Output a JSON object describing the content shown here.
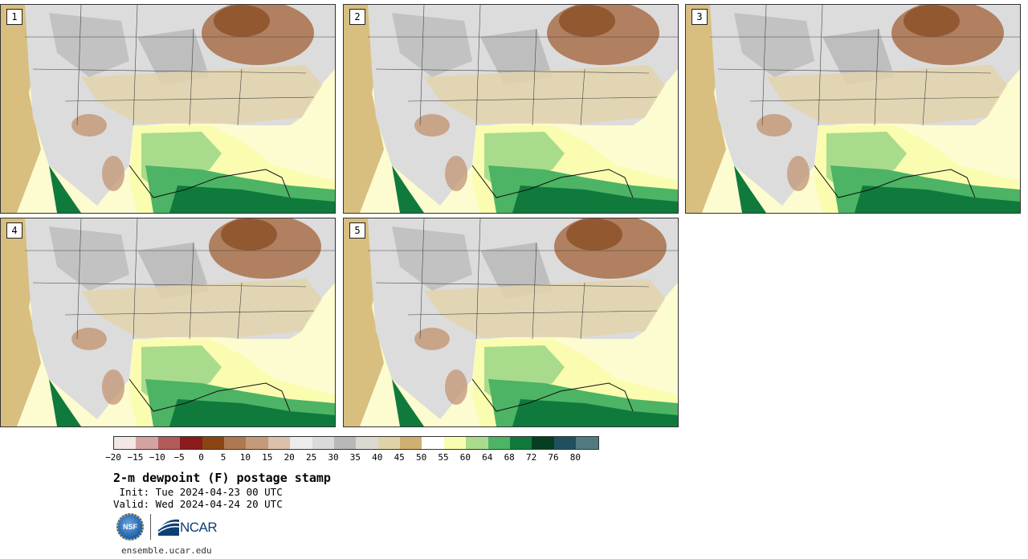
{
  "panels": [
    {
      "label": "1"
    },
    {
      "label": "2"
    },
    {
      "label": "3"
    },
    {
      "label": "4"
    },
    {
      "label": "5"
    }
  ],
  "colorbar": {
    "colors": [
      "#f2e6e6",
      "#d5a2a2",
      "#b35a5a",
      "#8b1a1a",
      "#8b4513",
      "#b07850",
      "#c49a7a",
      "#dcc0aa",
      "#ececec",
      "#dadada",
      "#b8b8b8",
      "#dcdad0",
      "#e0d2a8",
      "#d0b070",
      "#ffffff",
      "#fafcb0",
      "#a8dc8c",
      "#4cb464",
      "#0f7a3c",
      "#053e22",
      "#205060",
      "#507a80"
    ],
    "ticks": [
      "−20",
      "−15",
      "−10",
      "−5",
      "0",
      "5",
      "10",
      "15",
      "20",
      "25",
      "30",
      "35",
      "40",
      "45",
      "50",
      "55",
      "60",
      "64",
      "68",
      "72",
      "76",
      "80"
    ]
  },
  "title": "2-m dewpoint (F) postage stamp",
  "init": " Init: Tue 2024-04-23 00 UTC",
  "valid": "Valid: Wed 2024-04-24 20 UTC",
  "logos": {
    "nsf": "NSF",
    "ncar": "NCAR"
  },
  "url": "ensemble.ucar.edu"
}
